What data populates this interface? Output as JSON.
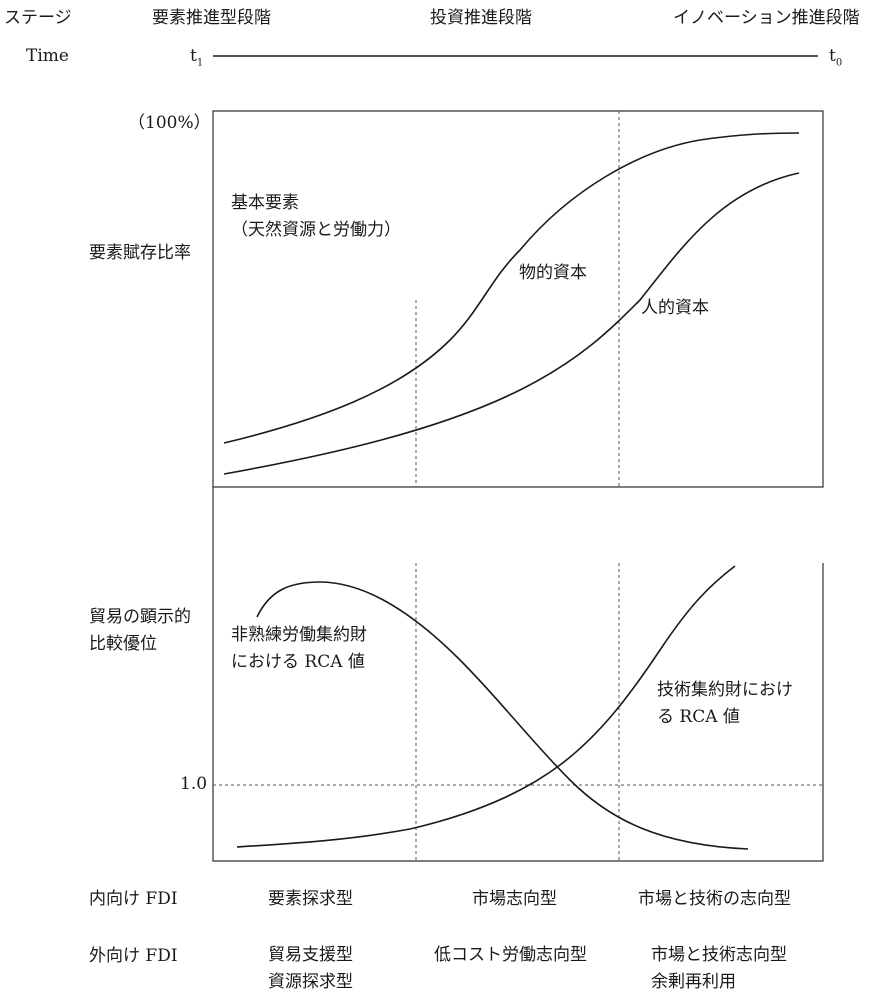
{
  "header": {
    "stage_label": "ステージ",
    "stages": [
      "要素推進型段階",
      "投資推進段階",
      "イノベーション推進段階"
    ],
    "time_label": "Time",
    "time_start": "t",
    "time_start_sub": "1",
    "time_end": "t",
    "time_end_sub": "0"
  },
  "top_panel": {
    "y_label": "要素賦存比率",
    "percent_label": "（100%）",
    "basic_factor": [
      "基本要素",
      "（天然資源と労働力）"
    ],
    "curves": [
      {
        "name": "物的資本"
      },
      {
        "name": "人的資本"
      }
    ]
  },
  "bottom_panel": {
    "y_label": [
      "貿易の顕示的",
      "比較優位"
    ],
    "reference_value": "1.0",
    "curves": [
      {
        "name": [
          "非熟練労働集約財",
          "における RCA 値"
        ]
      },
      {
        "name": [
          "技術集約財におけ",
          "る RCA 値"
        ]
      }
    ]
  },
  "footer": {
    "inward_label": "内向け FDI",
    "inward": [
      "要素探求型",
      "市場志向型",
      "市場と技術の志向型"
    ],
    "outward_label": "外向け FDI",
    "outward": [
      [
        "貿易支援型",
        "資源探求型"
      ],
      [
        "低コスト労働志向型"
      ],
      [
        "市場と技術志向型",
        "余剰再利用"
      ]
    ]
  }
}
